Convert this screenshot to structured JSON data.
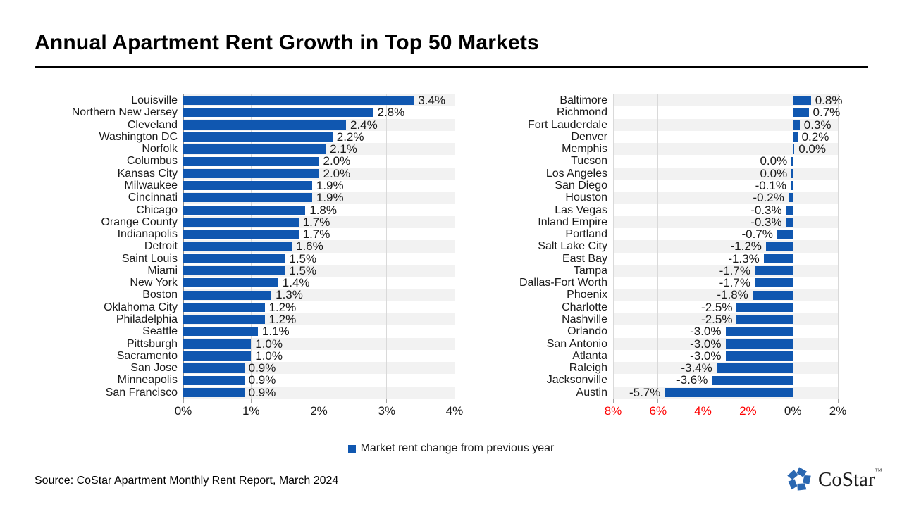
{
  "page": {
    "title": "Annual Apartment Rent Growth in Top 50 Markets",
    "legend_label": "Market rent change from previous year",
    "source": "Source: CoStar Apartment Monthly Rent Report, March 2024",
    "logo_text": "CoStar",
    "logo_tm": "™"
  },
  "colors": {
    "bar": "#1057b0",
    "stripe": "#f2f2f2",
    "grid": "#d9d9d9",
    "zero_line": "#8f8f8f",
    "axis": "#a0a0a0",
    "tick_negative": "#ff0000",
    "tick_normal": "#1a1a1a",
    "logo_blue": "#2a67b1"
  },
  "chart_data": [
    {
      "type": "bar",
      "orientation": "horizontal",
      "panel": "left",
      "title": "",
      "xlabel": "",
      "ylabel": "",
      "xlim": [
        0,
        4
      ],
      "grid": true,
      "ticks": [
        {
          "value": 0,
          "label": "0%",
          "red": false
        },
        {
          "value": 1,
          "label": "1%",
          "red": false
        },
        {
          "value": 2,
          "label": "2%",
          "red": false
        },
        {
          "value": 3,
          "label": "3%",
          "red": false
        },
        {
          "value": 4,
          "label": "4%",
          "red": false
        }
      ],
      "markets": [
        {
          "name": "Louisville",
          "value": 3.4,
          "label": "3.4%"
        },
        {
          "name": "Northern New Jersey",
          "value": 2.8,
          "label": "2.8%"
        },
        {
          "name": "Cleveland",
          "value": 2.4,
          "label": "2.4%"
        },
        {
          "name": "Washington DC",
          "value": 2.2,
          "label": "2.2%"
        },
        {
          "name": "Norfolk",
          "value": 2.1,
          "label": "2.1%"
        },
        {
          "name": "Columbus",
          "value": 2.0,
          "label": "2.0%"
        },
        {
          "name": "Kansas City",
          "value": 2.0,
          "label": "2.0%"
        },
        {
          "name": "Milwaukee",
          "value": 1.9,
          "label": "1.9%"
        },
        {
          "name": "Cincinnati",
          "value": 1.9,
          "label": "1.9%"
        },
        {
          "name": "Chicago",
          "value": 1.8,
          "label": "1.8%"
        },
        {
          "name": "Orange County",
          "value": 1.7,
          "label": "1.7%"
        },
        {
          "name": "Indianapolis",
          "value": 1.7,
          "label": "1.7%"
        },
        {
          "name": "Detroit",
          "value": 1.6,
          "label": "1.6%"
        },
        {
          "name": "Saint Louis",
          "value": 1.5,
          "label": "1.5%"
        },
        {
          "name": "Miami",
          "value": 1.5,
          "label": "1.5%"
        },
        {
          "name": "New York",
          "value": 1.4,
          "label": "1.4%"
        },
        {
          "name": "Boston",
          "value": 1.3,
          "label": "1.3%"
        },
        {
          "name": "Oklahoma City",
          "value": 1.2,
          "label": "1.2%"
        },
        {
          "name": "Philadelphia",
          "value": 1.2,
          "label": "1.2%"
        },
        {
          "name": "Seattle",
          "value": 1.1,
          "label": "1.1%"
        },
        {
          "name": "Pittsburgh",
          "value": 1.0,
          "label": "1.0%"
        },
        {
          "name": "Sacramento",
          "value": 1.0,
          "label": "1.0%"
        },
        {
          "name": "San Jose",
          "value": 0.9,
          "label": "0.9%"
        },
        {
          "name": "Minneapolis",
          "value": 0.9,
          "label": "0.9%"
        },
        {
          "name": "San Francisco",
          "value": 0.9,
          "label": "0.9%"
        }
      ]
    },
    {
      "type": "bar",
      "orientation": "horizontal",
      "panel": "right",
      "title": "",
      "xlabel": "",
      "ylabel": "",
      "xlim": [
        -8,
        2
      ],
      "grid": true,
      "ticks": [
        {
          "value": -8,
          "label": "8%",
          "red": true
        },
        {
          "value": -6,
          "label": "6%",
          "red": true
        },
        {
          "value": -4,
          "label": "4%",
          "red": true
        },
        {
          "value": -2,
          "label": "2%",
          "red": true
        },
        {
          "value": 0,
          "label": "0%",
          "red": false
        },
        {
          "value": 2,
          "label": "2%",
          "red": false
        }
      ],
      "markets": [
        {
          "name": "Baltimore",
          "value": 0.8,
          "label": "0.8%"
        },
        {
          "name": "Richmond",
          "value": 0.7,
          "label": "0.7%"
        },
        {
          "name": "Fort Lauderdale",
          "value": 0.3,
          "label": "0.3%"
        },
        {
          "name": "Denver",
          "value": 0.2,
          "label": "0.2%"
        },
        {
          "name": "Memphis",
          "value": 0.0,
          "label": "0.0%",
          "bar_dir": "pos"
        },
        {
          "name": "Tucson",
          "value": 0.0,
          "label": "0.0%",
          "bar_dir": "neg"
        },
        {
          "name": "Los Angeles",
          "value": 0.0,
          "label": "0.0%",
          "bar_dir": "neg"
        },
        {
          "name": "San Diego",
          "value": -0.1,
          "label": "-0.1%"
        },
        {
          "name": "Houston",
          "value": -0.2,
          "label": "-0.2%"
        },
        {
          "name": "Las Vegas",
          "value": -0.3,
          "label": "-0.3%"
        },
        {
          "name": "Inland Empire",
          "value": -0.3,
          "label": "-0.3%"
        },
        {
          "name": "Portland",
          "value": -0.7,
          "label": "-0.7%"
        },
        {
          "name": "Salt Lake City",
          "value": -1.2,
          "label": "-1.2%"
        },
        {
          "name": "East Bay",
          "value": -1.3,
          "label": "-1.3%"
        },
        {
          "name": "Tampa",
          "value": -1.7,
          "label": "-1.7%"
        },
        {
          "name": "Dallas-Fort Worth",
          "value": -1.7,
          "label": "-1.7%"
        },
        {
          "name": "Phoenix",
          "value": -1.8,
          "label": "-1.8%"
        },
        {
          "name": "Charlotte",
          "value": -2.5,
          "label": "-2.5%"
        },
        {
          "name": "Nashville",
          "value": -2.5,
          "label": "-2.5%"
        },
        {
          "name": "Orlando",
          "value": -3.0,
          "label": "-3.0%"
        },
        {
          "name": "San Antonio",
          "value": -3.0,
          "label": "-3.0%"
        },
        {
          "name": "Atlanta",
          "value": -3.0,
          "label": "-3.0%"
        },
        {
          "name": "Raleigh",
          "value": -3.4,
          "label": "-3.4%"
        },
        {
          "name": "Jacksonville",
          "value": -3.6,
          "label": "-3.6%"
        },
        {
          "name": "Austin",
          "value": -5.7,
          "label": "-5.7%"
        }
      ]
    }
  ]
}
